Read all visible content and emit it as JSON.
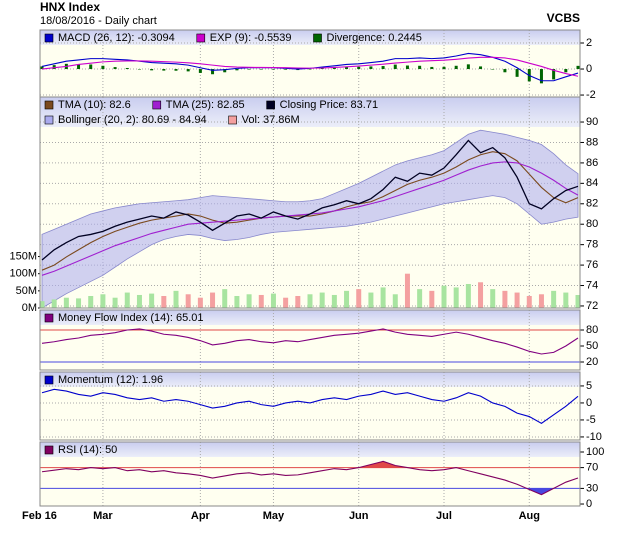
{
  "title": "HNX Index",
  "subtitle": "18/08/2016 - Daily chart",
  "source": "VCBS",
  "chart_data": [
    {
      "type": "line",
      "ylim": [
        -2.15,
        3
      ],
      "yticks": [
        -2,
        0,
        2
      ],
      "grid": true,
      "series": [
        {
          "name": "MACD (26, 12): -0.3094",
          "color": "#0000cc",
          "mark": "line",
          "values": [
            0.2,
            0.4,
            0.6,
            0.7,
            0.8,
            0.8,
            0.75,
            0.7,
            0.6,
            0.5,
            0.45,
            0.4,
            0.3,
            0.1,
            -0.1,
            -0.05,
            0.05,
            0.1,
            0.1,
            0.1,
            0.05,
            0.0,
            0.05,
            0.15,
            0.25,
            0.35,
            0.4,
            0.5,
            0.6,
            0.8,
            0.8,
            0.85,
            0.8,
            0.85,
            1.0,
            1.2,
            1.1,
            0.9,
            0.6,
            0.1,
            -0.5,
            -0.9,
            -0.9,
            -0.6,
            -0.3094
          ]
        },
        {
          "name": "EXP (9): -0.5539",
          "color": "#cc00cc",
          "mark": "line",
          "values": [
            0.0,
            0.1,
            0.2,
            0.35,
            0.45,
            0.55,
            0.6,
            0.62,
            0.62,
            0.6,
            0.57,
            0.53,
            0.48,
            0.4,
            0.3,
            0.2,
            0.15,
            0.13,
            0.12,
            0.11,
            0.1,
            0.08,
            0.07,
            0.08,
            0.12,
            0.17,
            0.23,
            0.3,
            0.37,
            0.46,
            0.53,
            0.6,
            0.64,
            0.68,
            0.75,
            0.84,
            0.9,
            0.9,
            0.85,
            0.7,
            0.45,
            0.2,
            -0.1,
            -0.35,
            -0.5539
          ]
        },
        {
          "name": "Divergence: 0.2445",
          "color": "#006600",
          "mark": "bar",
          "values": [
            0.2,
            0.3,
            0.4,
            0.35,
            0.35,
            0.25,
            0.15,
            0.08,
            -0.02,
            -0.1,
            -0.12,
            -0.13,
            -0.18,
            -0.3,
            -0.4,
            -0.25,
            -0.1,
            -0.03,
            -0.02,
            -0.01,
            -0.05,
            -0.08,
            -0.02,
            0.07,
            0.13,
            0.18,
            0.17,
            0.2,
            0.23,
            0.34,
            0.27,
            0.25,
            0.16,
            0.17,
            0.25,
            0.36,
            0.2,
            0.0,
            -0.25,
            -0.6,
            -0.95,
            -1.1,
            -0.8,
            -0.25,
            0.2445
          ]
        }
      ]
    },
    {
      "type": "line",
      "ylim": [
        71.8,
        92.45
      ],
      "yticks": [
        72,
        74,
        76,
        78,
        80,
        82,
        84,
        86,
        88,
        90
      ],
      "grid": true,
      "y2lim": [
        0,
        615
      ],
      "y2ticks": [
        {
          "value": 0,
          "label": "0M"
        },
        {
          "value": 50,
          "label": "50M"
        },
        {
          "value": 100,
          "label": "100M"
        },
        {
          "value": 150,
          "label": "150M"
        }
      ],
      "series": [
        {
          "name": "TMA (10): 82.6",
          "color": "#7b4a1e",
          "mark": "line",
          "values": [
            75.5,
            76,
            76.8,
            77.5,
            78.2,
            78.8,
            79.3,
            79.7,
            80.1,
            80.4,
            80.6,
            80.8,
            81.0,
            80.8,
            80.4,
            80.1,
            80.2,
            80.4,
            80.6,
            80.7,
            80.8,
            80.8,
            80.8,
            81.0,
            81.3,
            81.7,
            82.0,
            82.2,
            82.7,
            83.3,
            83.9,
            84.3,
            84.6,
            85.0,
            85.6,
            86.3,
            86.8,
            87.1,
            86.9,
            86.2,
            84.9,
            83.6,
            82.6,
            82.1,
            82.6
          ]
        },
        {
          "name": "TMA (25): 82.85",
          "color": "#a020d0",
          "mark": "line",
          "values": [
            75.0,
            75.4,
            75.9,
            76.4,
            76.9,
            77.4,
            77.9,
            78.3,
            78.7,
            79.1,
            79.4,
            79.7,
            80.0,
            80.1,
            80.2,
            80.3,
            80.4,
            80.5,
            80.6,
            80.7,
            80.8,
            80.9,
            81.0,
            81.1,
            81.3,
            81.5,
            81.7,
            82.0,
            82.3,
            82.7,
            83.1,
            83.5,
            83.9,
            84.3,
            84.8,
            85.3,
            85.7,
            86.0,
            86.1,
            86.0,
            85.6,
            85.0,
            84.3,
            83.5,
            82.85
          ]
        },
        {
          "name": "Closing Price: 83.71",
          "color": "#000022",
          "mark": "line",
          "values": [
            76.5,
            77.5,
            78.2,
            78.8,
            79.0,
            79.3,
            79.8,
            80.2,
            80.5,
            80.8,
            80.6,
            81.2,
            80.9,
            80.2,
            79.4,
            80.1,
            80.8,
            81.0,
            80.6,
            81.2,
            80.8,
            80.5,
            81.0,
            81.6,
            81.9,
            82.3,
            82.0,
            82.5,
            83.4,
            84.6,
            84.2,
            85.0,
            84.8,
            85.5,
            86.8,
            88.2,
            87.0,
            87.5,
            86.5,
            84.6,
            82.0,
            81.5,
            82.5,
            83.3,
            83.71
          ]
        },
        {
          "name": "Bollinger (20, 2): 80.69 - 84.94",
          "color": "#aaaaee",
          "mark": "band",
          "upper": [
            79,
            79.5,
            80,
            80.5,
            81,
            81.3,
            81.6,
            81.8,
            82.0,
            82.1,
            82.2,
            82.3,
            82.4,
            82.6,
            82.8,
            82.7,
            82.6,
            82.5,
            82.4,
            82.3,
            82.2,
            82.2,
            82.3,
            82.5,
            83.0,
            83.5,
            84.0,
            84.6,
            85.2,
            85.8,
            86.2,
            86.5,
            86.8,
            87.2,
            88.0,
            88.8,
            89.2,
            89.0,
            88.8,
            88.5,
            88.2,
            87.8,
            86.9,
            85.8,
            84.94
          ],
          "lower": [
            71.8,
            72.5,
            73.2,
            73.8,
            74.4,
            75.0,
            75.8,
            76.6,
            77.3,
            78.0,
            78.5,
            78.8,
            79.0,
            78.9,
            78.6,
            78.4,
            78.5,
            78.7,
            79.0,
            79.2,
            79.3,
            79.4,
            79.5,
            79.6,
            79.7,
            79.8,
            80.0,
            80.2,
            80.5,
            80.8,
            81.1,
            81.4,
            81.7,
            82.0,
            82.2,
            82.4,
            82.6,
            82.8,
            82.6,
            82.0,
            81.0,
            80.0,
            80.2,
            80.5,
            80.69
          ]
        },
        {
          "name": "Vol: 37.86M",
          "color": "#f4a0a0",
          "up_color": "#a8e4a0",
          "mark": "bar",
          "axis": "y2",
          "values": [
            20,
            25,
            30,
            28,
            35,
            40,
            30,
            45,
            38,
            42,
            35,
            50,
            40,
            30,
            45,
            55,
            35,
            40,
            38,
            42,
            30,
            35,
            40,
            45,
            38,
            50,
            55,
            45,
            60,
            40,
            100,
            55,
            50,
            65,
            60,
            70,
            75,
            55,
            50,
            45,
            35,
            40,
            50,
            45,
            37.86
          ]
        }
      ]
    },
    {
      "type": "line",
      "ylim": [
        5,
        117.5
      ],
      "yticks": [
        20,
        50,
        80
      ],
      "grid": false,
      "upper": {
        "value": 80,
        "color": "#e04848"
      },
      "lower": {
        "value": 20,
        "color": "#4848e0"
      },
      "series": [
        {
          "name": "Money Flow Index (14): 65.01",
          "color": "#800080",
          "mark": "line",
          "values": [
            55,
            58,
            62,
            65,
            70,
            72,
            75,
            80,
            82,
            78,
            72,
            70,
            66,
            60,
            52,
            55,
            60,
            62,
            58,
            56,
            60,
            58,
            62,
            66,
            70,
            72,
            74,
            78,
            82,
            76,
            72,
            70,
            68,
            72,
            76,
            72,
            66,
            60,
            55,
            48,
            40,
            35,
            38,
            50,
            65.01
          ]
        }
      ]
    },
    {
      "type": "line",
      "ylim": [
        -10.9,
        9.1
      ],
      "yticks": [
        -10,
        -5,
        0,
        5
      ],
      "grid": true,
      "series": [
        {
          "name": "Momentum (12): 1.96",
          "color": "#0000cc",
          "mark": "line",
          "values": [
            3,
            4,
            3.5,
            2.5,
            2,
            3,
            2.5,
            1.5,
            1,
            1.5,
            0.5,
            1,
            0.5,
            -0.5,
            -1.5,
            -1,
            0,
            0.5,
            -0.5,
            -1,
            0,
            0.5,
            0,
            1,
            1.5,
            1,
            2,
            2.5,
            3.5,
            2.5,
            3,
            2,
            1,
            0.5,
            1.5,
            3,
            2,
            0,
            -1,
            -3,
            -4,
            -6,
            -3.5,
            -1,
            1.96
          ]
        }
      ]
    },
    {
      "type": "line",
      "ylim": [
        -3.8,
        119.2
      ],
      "yticks": [
        0,
        30,
        70,
        100
      ],
      "grid": false,
      "upper": {
        "value": 70,
        "color": "#e04848"
      },
      "lower": {
        "value": 30,
        "color": "#4848e0"
      },
      "categories": [
        "Feb 16",
        null,
        null,
        null,
        null,
        "Mar",
        null,
        null,
        null,
        null,
        null,
        null,
        null,
        "Apr",
        null,
        null,
        null,
        null,
        null,
        "May",
        null,
        null,
        null,
        null,
        null,
        null,
        "Jun",
        null,
        null,
        null,
        null,
        null,
        null,
        "Jul",
        null,
        null,
        null,
        null,
        null,
        null,
        "Aug",
        null,
        null,
        null,
        null
      ],
      "series": [
        {
          "name": "RSI (14): 50",
          "color": "#800060",
          "mark": "line",
          "values": [
            62,
            65,
            68,
            66,
            70,
            68,
            70,
            64,
            66,
            62,
            64,
            60,
            58,
            55,
            50,
            54,
            58,
            60,
            56,
            58,
            55,
            56,
            60,
            64,
            68,
            66,
            70,
            76,
            82,
            74,
            70,
            66,
            64,
            66,
            70,
            64,
            58,
            52,
            46,
            38,
            28,
            18,
            30,
            42,
            50
          ]
        }
      ]
    }
  ]
}
